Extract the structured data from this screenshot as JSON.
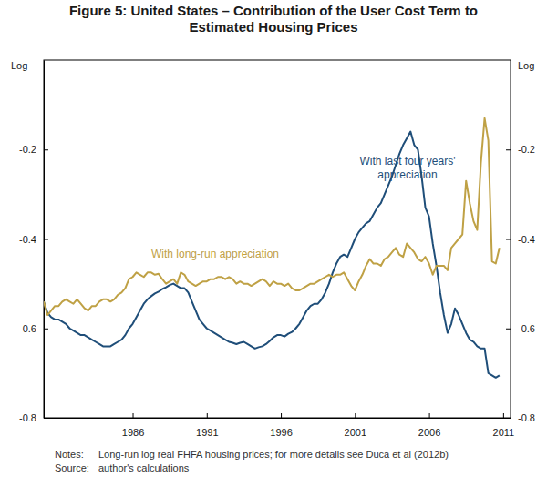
{
  "chart_data": {
    "type": "line",
    "title": "Figure 5: United States – Contribution of the User Cost Term to Estimated Housing Prices",
    "ylabel": "Log",
    "y2label": "Log",
    "footnotes": [
      {
        "label": "Notes:",
        "text": "Long-run log real FHFA housing prices; for more details see Duca et al (2012b)"
      },
      {
        "label": "Source:",
        "text": "author's calculations"
      }
    ],
    "grid": false,
    "xlim": [
      1980,
      2011.5
    ],
    "xticks": [
      1986,
      1991,
      1996,
      2001,
      2006,
      2011
    ],
    "ylim": [
      -0.8,
      0
    ],
    "yticks": [
      -0.8,
      -0.6,
      -0.4,
      -0.2
    ],
    "y2lim": [
      -0.8,
      0
    ],
    "y2ticks": [
      -0.8,
      -0.6,
      -0.4,
      -0.2
    ],
    "x": [
      1980,
      1980.25,
      1980.5,
      1980.75,
      1981,
      1981.25,
      1981.5,
      1981.75,
      1982,
      1982.25,
      1982.5,
      1982.75,
      1983,
      1983.25,
      1983.5,
      1983.75,
      1984,
      1984.25,
      1984.5,
      1984.75,
      1985,
      1985.25,
      1985.5,
      1985.75,
      1986,
      1986.25,
      1986.5,
      1986.75,
      1987,
      1987.25,
      1987.5,
      1987.75,
      1988,
      1988.25,
      1988.5,
      1988.75,
      1989,
      1989.25,
      1989.5,
      1989.75,
      1990,
      1990.25,
      1990.5,
      1990.75,
      1991,
      1991.25,
      1991.5,
      1991.75,
      1992,
      1992.25,
      1992.5,
      1992.75,
      1993,
      1993.25,
      1993.5,
      1993.75,
      1994,
      1994.25,
      1994.5,
      1994.75,
      1995,
      1995.25,
      1995.5,
      1995.75,
      1996,
      1996.25,
      1996.5,
      1996.75,
      1997,
      1997.25,
      1997.5,
      1997.75,
      1998,
      1998.25,
      1998.5,
      1998.75,
      1999,
      1999.25,
      1999.5,
      1999.75,
      2000,
      2000.25,
      2000.5,
      2000.75,
      2001,
      2001.25,
      2001.5,
      2001.75,
      2002,
      2002.25,
      2002.5,
      2002.75,
      2003,
      2003.25,
      2003.5,
      2003.75,
      2004,
      2004.25,
      2004.5,
      2004.75,
      2005,
      2005.25,
      2005.5,
      2005.75,
      2006,
      2006.25,
      2006.5,
      2006.75,
      2007,
      2007.25,
      2007.5,
      2007.75,
      2008,
      2008.25,
      2008.5,
      2008.75,
      2009,
      2009.25,
      2009.5,
      2009.75,
      2010,
      2010.25,
      2010.5,
      2010.75
    ],
    "series": [
      {
        "name": "With last four years' appreciation",
        "color": "#1f4e79",
        "values": [
          -0.54,
          -0.565,
          -0.575,
          -0.58,
          -0.58,
          -0.585,
          -0.59,
          -0.6,
          -0.605,
          -0.61,
          -0.615,
          -0.615,
          -0.62,
          -0.625,
          -0.63,
          -0.635,
          -0.64,
          -0.64,
          -0.64,
          -0.635,
          -0.63,
          -0.625,
          -0.615,
          -0.6,
          -0.59,
          -0.575,
          -0.56,
          -0.545,
          -0.535,
          -0.528,
          -0.522,
          -0.518,
          -0.512,
          -0.508,
          -0.503,
          -0.5,
          -0.505,
          -0.51,
          -0.51,
          -0.52,
          -0.54,
          -0.56,
          -0.58,
          -0.59,
          -0.6,
          -0.605,
          -0.61,
          -0.615,
          -0.62,
          -0.625,
          -0.63,
          -0.632,
          -0.635,
          -0.632,
          -0.63,
          -0.635,
          -0.64,
          -0.645,
          -0.642,
          -0.64,
          -0.635,
          -0.628,
          -0.62,
          -0.615,
          -0.615,
          -0.618,
          -0.612,
          -0.608,
          -0.6,
          -0.59,
          -0.575,
          -0.56,
          -0.55,
          -0.545,
          -0.545,
          -0.535,
          -0.52,
          -0.5,
          -0.475,
          -0.455,
          -0.44,
          -0.435,
          -0.44,
          -0.42,
          -0.4,
          -0.385,
          -0.375,
          -0.365,
          -0.36,
          -0.345,
          -0.33,
          -0.32,
          -0.3,
          -0.28,
          -0.26,
          -0.235,
          -0.21,
          -0.19,
          -0.175,
          -0.16,
          -0.19,
          -0.2,
          -0.26,
          -0.33,
          -0.35,
          -0.41,
          -0.46,
          -0.52,
          -0.57,
          -0.61,
          -0.59,
          -0.555,
          -0.57,
          -0.59,
          -0.61,
          -0.625,
          -0.63,
          -0.64,
          -0.645,
          -0.645,
          -0.7,
          -0.705,
          -0.71,
          -0.705
        ]
      },
      {
        "name": "With long-run appreciation",
        "color": "#bfa145",
        "values": [
          -0.54,
          -0.57,
          -0.56,
          -0.55,
          -0.55,
          -0.54,
          -0.535,
          -0.54,
          -0.545,
          -0.535,
          -0.545,
          -0.555,
          -0.56,
          -0.55,
          -0.55,
          -0.54,
          -0.535,
          -0.535,
          -0.54,
          -0.535,
          -0.525,
          -0.52,
          -0.51,
          -0.49,
          -0.485,
          -0.475,
          -0.48,
          -0.485,
          -0.475,
          -0.475,
          -0.48,
          -0.478,
          -0.49,
          -0.5,
          -0.495,
          -0.49,
          -0.5,
          -0.475,
          -0.48,
          -0.495,
          -0.5,
          -0.505,
          -0.5,
          -0.495,
          -0.495,
          -0.49,
          -0.49,
          -0.485,
          -0.485,
          -0.49,
          -0.485,
          -0.49,
          -0.5,
          -0.495,
          -0.5,
          -0.5,
          -0.505,
          -0.5,
          -0.495,
          -0.49,
          -0.495,
          -0.505,
          -0.495,
          -0.5,
          -0.5,
          -0.505,
          -0.5,
          -0.51,
          -0.515,
          -0.515,
          -0.51,
          -0.505,
          -0.5,
          -0.5,
          -0.495,
          -0.49,
          -0.485,
          -0.48,
          -0.485,
          -0.48,
          -0.48,
          -0.475,
          -0.49,
          -0.505,
          -0.515,
          -0.495,
          -0.48,
          -0.46,
          -0.445,
          -0.455,
          -0.455,
          -0.46,
          -0.445,
          -0.44,
          -0.43,
          -0.42,
          -0.435,
          -0.44,
          -0.41,
          -0.42,
          -0.43,
          -0.445,
          -0.45,
          -0.44,
          -0.455,
          -0.48,
          -0.46,
          -0.46,
          -0.46,
          -0.47,
          -0.42,
          -0.41,
          -0.4,
          -0.39,
          -0.27,
          -0.32,
          -0.36,
          -0.38,
          -0.23,
          -0.13,
          -0.18,
          -0.45,
          -0.455,
          -0.42
        ]
      }
    ]
  }
}
